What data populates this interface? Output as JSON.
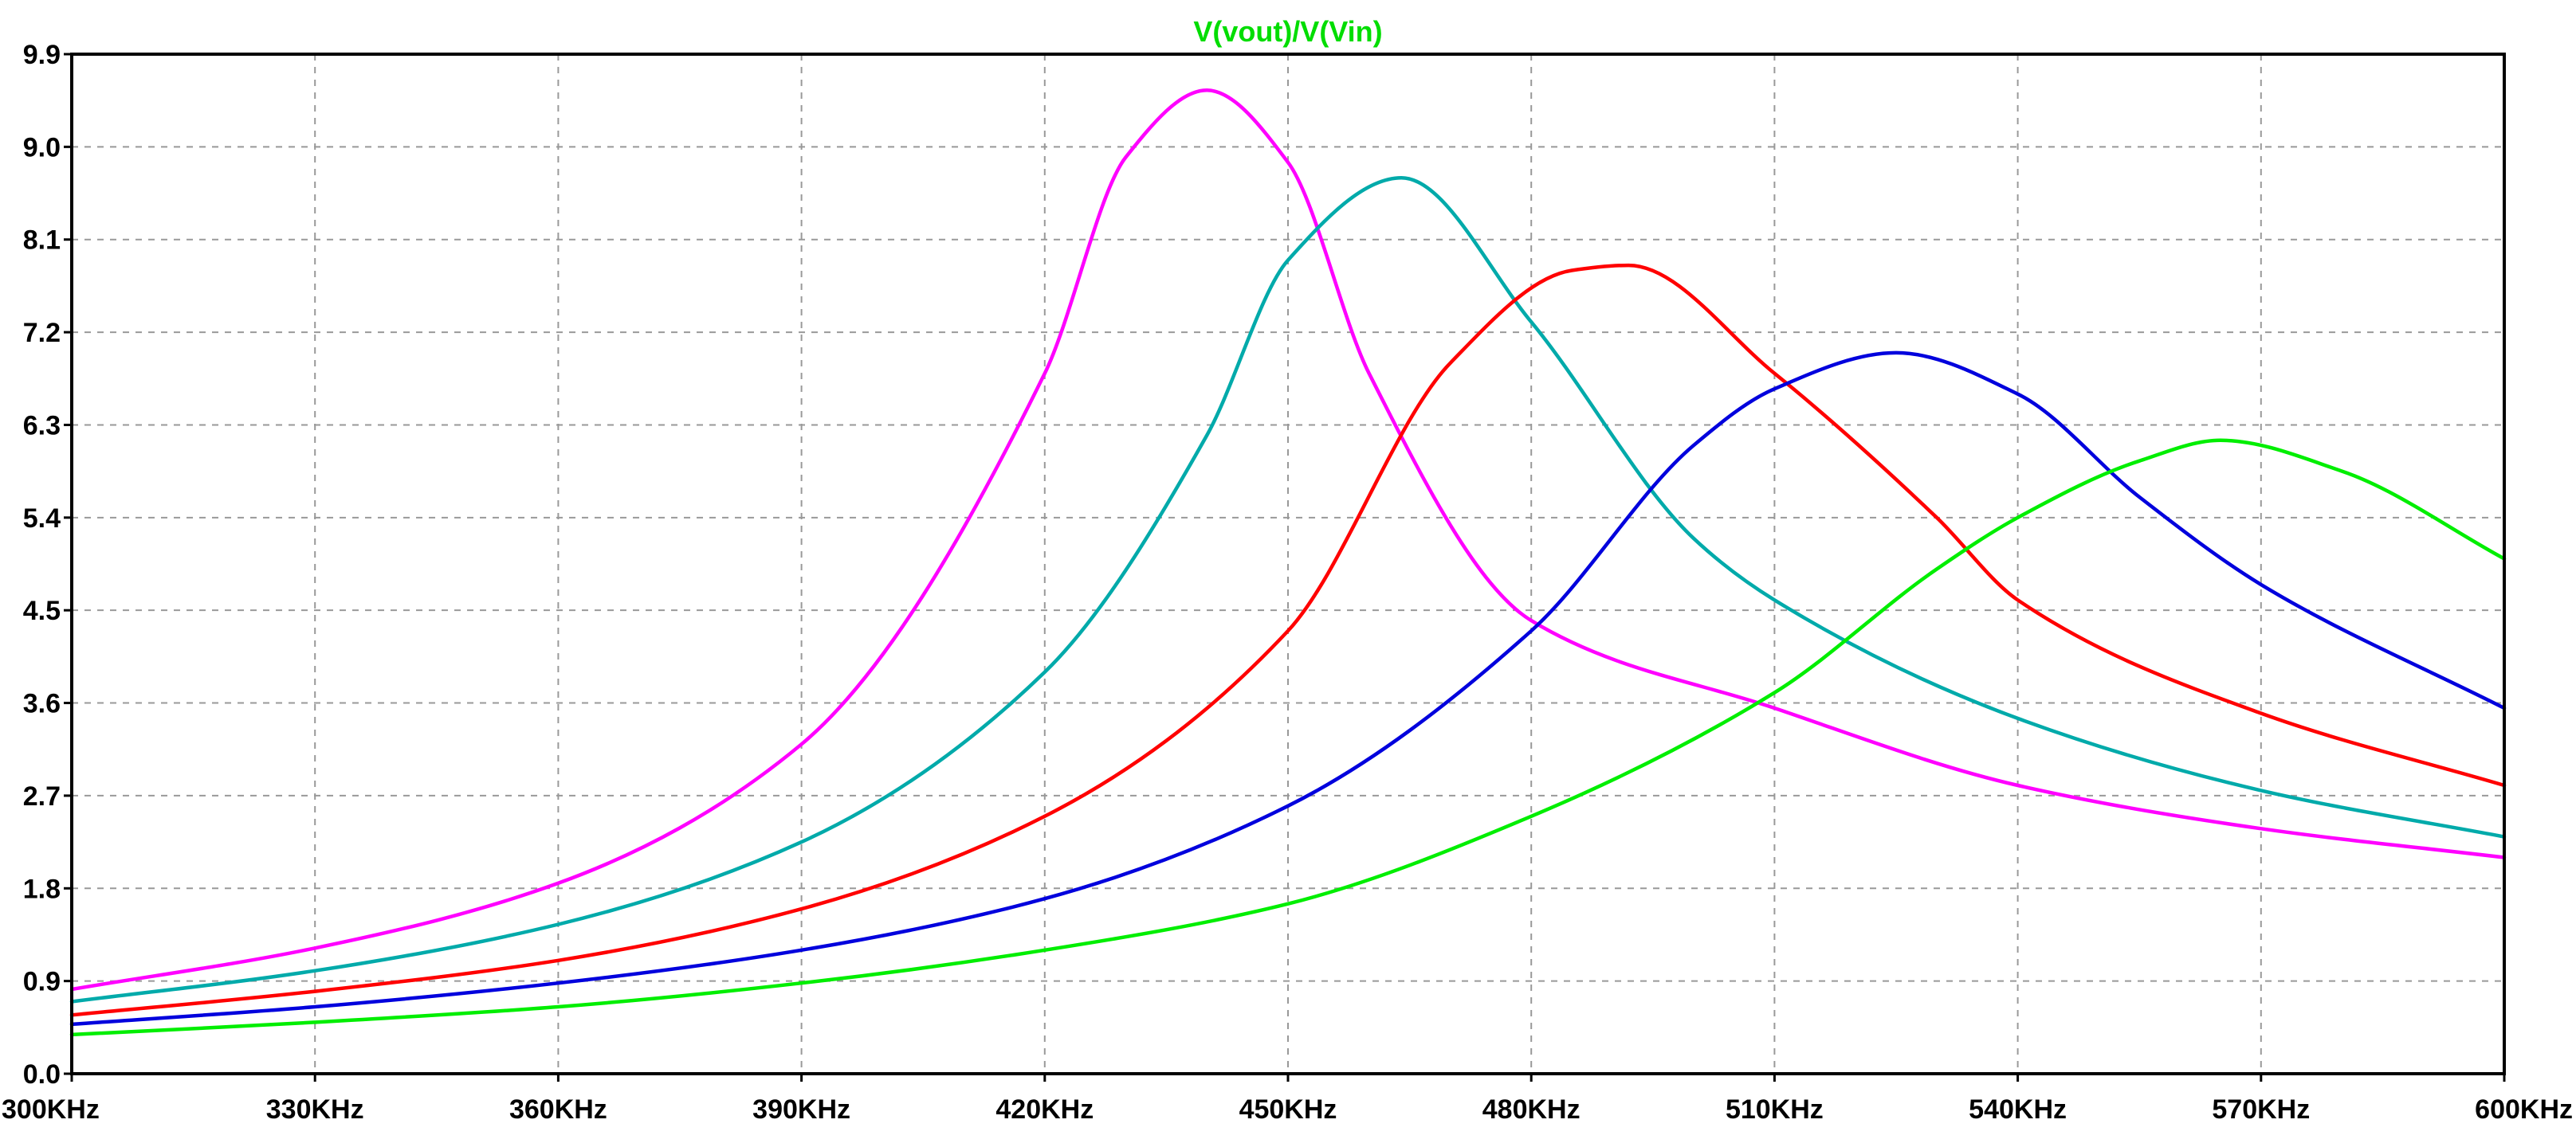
{
  "chart_data": {
    "type": "line",
    "title": "V(vout)/V(Vin)",
    "title_color": "#00dd00",
    "xlabel": "",
    "ylabel": "",
    "x_range_khz": [
      300,
      600
    ],
    "y_range": [
      0,
      9.9
    ],
    "x_ticks": [
      300,
      330,
      360,
      390,
      420,
      450,
      480,
      510,
      540,
      570,
      600
    ],
    "x_tick_labels": [
      "300KHz",
      "330KHz",
      "360KHz",
      "390KHz",
      "420KHz",
      "450KHz",
      "480KHz",
      "510KHz",
      "540KHz",
      "570KHz",
      "600KHz"
    ],
    "y_ticks": [
      0,
      0.9,
      1.8,
      2.7,
      3.6,
      4.5,
      5.4,
      6.3,
      7.2,
      8.1,
      9.0,
      9.9
    ],
    "y_tick_labels": [
      "0.0",
      "0.9",
      "1.8",
      "2.7",
      "3.6",
      "4.5",
      "5.4",
      "6.3",
      "7.2",
      "8.1",
      "9.0",
      "9.9"
    ],
    "grid": true,
    "series": [
      {
        "color": "#ff00ff",
        "x": [
          300,
          330,
          360,
          390,
          420,
          430,
          440,
          450,
          460,
          480,
          510,
          540,
          570,
          600
        ],
        "y": [
          0.82,
          1.22,
          1.85,
          3.2,
          6.8,
          8.9,
          9.55,
          8.85,
          6.8,
          4.4,
          3.55,
          2.8,
          2.38,
          2.1
        ]
      },
      {
        "color": "#00aaaa",
        "x": [
          300,
          330,
          360,
          390,
          420,
          440,
          450,
          464,
          480,
          500,
          510,
          540,
          570,
          600
        ],
        "y": [
          0.7,
          1.0,
          1.45,
          2.25,
          3.9,
          6.2,
          7.9,
          8.7,
          7.3,
          5.2,
          4.6,
          3.45,
          2.75,
          2.3
        ]
      },
      {
        "color": "#ff0000",
        "x": [
          300,
          330,
          360,
          390,
          420,
          450,
          470,
          485,
          492,
          510,
          530,
          540,
          570,
          600
        ],
        "y": [
          0.57,
          0.8,
          1.1,
          1.6,
          2.5,
          4.3,
          6.9,
          7.8,
          7.85,
          6.8,
          5.4,
          4.6,
          3.5,
          2.8
        ]
      },
      {
        "color": "#0000dd",
        "x": [
          300,
          330,
          360,
          390,
          420,
          450,
          480,
          500,
          510,
          525,
          540,
          555,
          570,
          600
        ],
        "y": [
          0.48,
          0.65,
          0.88,
          1.2,
          1.7,
          2.6,
          4.3,
          6.1,
          6.65,
          7.0,
          6.6,
          5.6,
          4.75,
          3.55
        ]
      },
      {
        "color": "#00ee00",
        "x": [
          300,
          330,
          360,
          390,
          420,
          450,
          480,
          510,
          530,
          540,
          555,
          565,
          580,
          600
        ],
        "y": [
          0.38,
          0.5,
          0.65,
          0.88,
          1.2,
          1.65,
          2.5,
          3.7,
          4.9,
          5.4,
          5.95,
          6.15,
          5.85,
          5.0
        ]
      }
    ]
  }
}
